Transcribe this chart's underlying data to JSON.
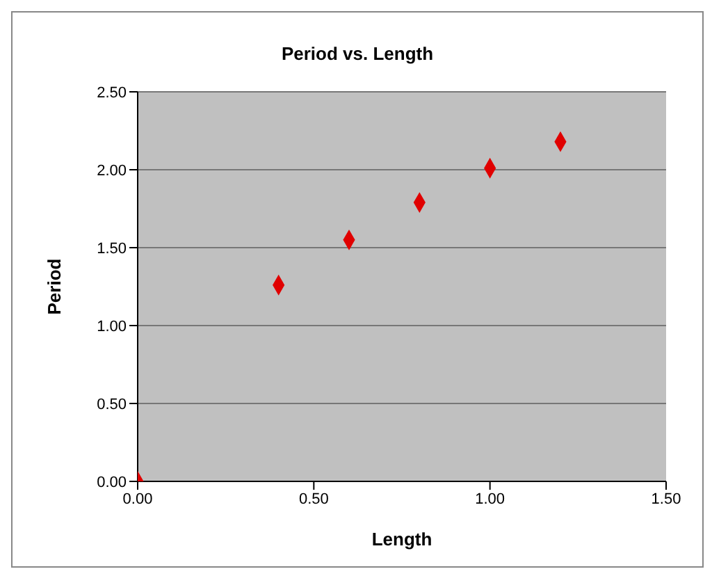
{
  "chart_data": {
    "type": "scatter",
    "title": "Period vs. Length",
    "xlabel": "Length",
    "ylabel": "Period",
    "x": [
      0,
      0.4,
      0.6,
      0.8,
      1.0,
      1.2
    ],
    "series": [
      {
        "color": "#e00000",
        "values": [
          0,
          1.26,
          1.55,
          1.79,
          2.01,
          2.18
        ]
      }
    ],
    "marker": "diamond",
    "grid": "y",
    "legend": false,
    "xlim": [
      0,
      1.5
    ],
    "xticks": [
      {
        "value": 0,
        "label": "0.00"
      },
      {
        "value": 0.5,
        "label": "0.50"
      },
      {
        "value": 1,
        "label": "1.00"
      },
      {
        "value": 1.5,
        "label": "1.50"
      }
    ],
    "ylim": [
      0,
      2.5
    ],
    "yticks": [
      {
        "value": 0,
        "label": "0.00"
      },
      {
        "value": 0.5,
        "label": "0.50"
      },
      {
        "value": 1,
        "label": "1.00"
      },
      {
        "value": 1.5,
        "label": "1.50"
      },
      {
        "value": 2,
        "label": "2.00"
      },
      {
        "value": 2.5,
        "label": "2.50"
      }
    ]
  }
}
